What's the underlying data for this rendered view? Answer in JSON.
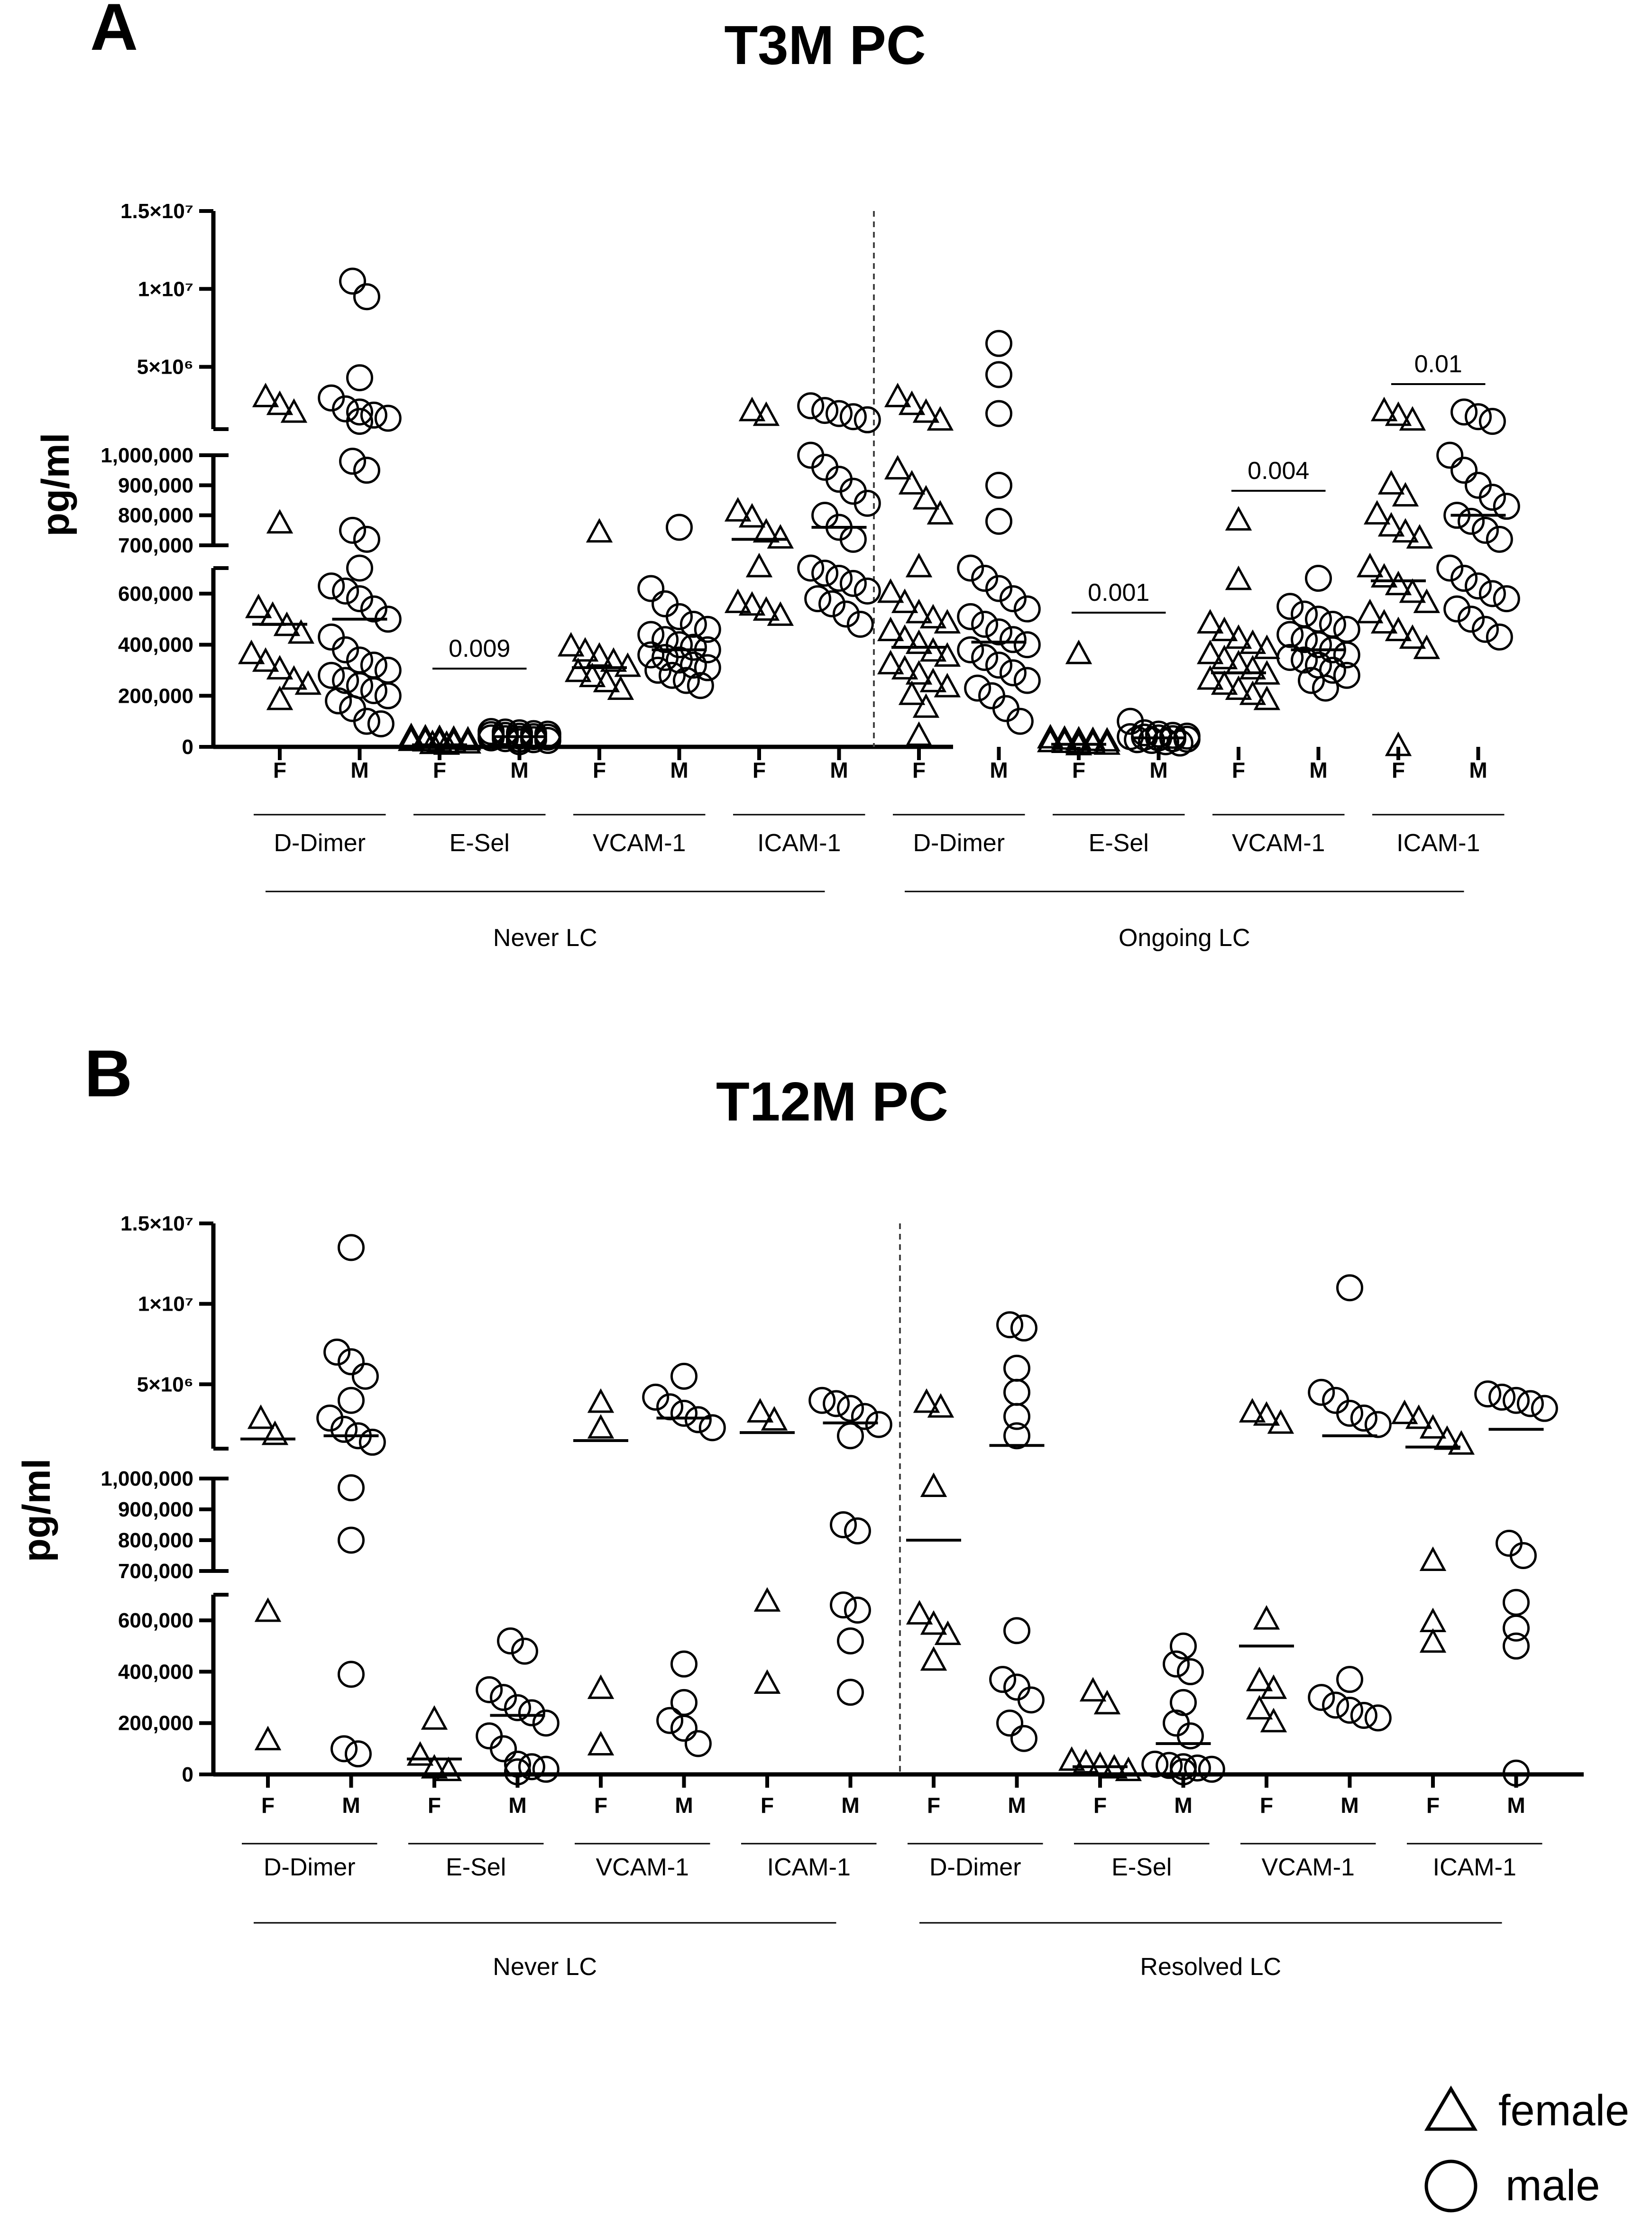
{
  "figure": {
    "legend": [
      {
        "shape": "triangle",
        "label": "female"
      },
      {
        "shape": "circle",
        "label": "male"
      }
    ]
  },
  "chart_data": [
    {
      "type": "scatter",
      "panel_letter": "A",
      "title": "T3M PC",
      "ylabel": "pg/ml",
      "y_axis": {
        "broken": true,
        "segments": [
          {
            "range": [
              0,
              700000
            ],
            "ticks": [
              0,
              200000,
              400000,
              600000
            ],
            "tick_labels": [
              "0",
              "200,000",
              "400,000",
              "600,000"
            ]
          },
          {
            "range": [
              700000,
              1000000
            ],
            "ticks": [
              700000,
              800000,
              900000,
              1000000
            ],
            "tick_labels": [
              "700,000",
              "800,000",
              "900,000",
              "1,000,000"
            ]
          },
          {
            "range": [
              1000000,
              15000000
            ],
            "ticks": [
              5000000,
              10000000,
              15000000
            ],
            "tick_labels": [
              "5×10⁶",
              "1×10⁷",
              "1.5×10⁷"
            ]
          }
        ]
      },
      "x_tick_labels": [
        "F",
        "M"
      ],
      "markers": {
        "F": "triangle",
        "M": "circle"
      },
      "groups": [
        {
          "name": "Never LC",
          "markers": [
            {
              "name": "D-Dimer",
              "F": {
                "values": [
                  180000,
                  240000,
                  260000,
                  300000,
                  330000,
                  360000,
                  440000,
                  470000,
                  510000,
                  540000,
                  770000,
                  2000000,
                  2500000,
                  3000000
                ],
                "median": 480000
              },
              "M": {
                "values": [
                  90000,
                  100000,
                  150000,
                  180000,
                  200000,
                  220000,
                  240000,
                  260000,
                  280000,
                  300000,
                  320000,
                  340000,
                  380000,
                  430000,
                  500000,
                  540000,
                  580000,
                  610000,
                  630000,
                  700000,
                  720000,
                  750000,
                  950000,
                  980000,
                  1500000,
                  1700000,
                  1900000,
                  2100000,
                  2300000,
                  3000000,
                  4300000,
                  9500000,
                  10500000
                ],
                "median": 500000
              }
            },
            {
              "name": "E-Sel",
              "p_value": "0.009",
              "F": {
                "values": [
                  5000,
                  8000,
                  10000,
                  12000,
                  15000,
                  18000,
                  20000,
                  22000,
                  25000,
                  28000,
                  30000,
                  35000
                ],
                "median": 8000
              },
              "M": {
                "values": [
                  20000,
                  25000,
                  28000,
                  30000,
                  32000,
                  35000,
                  38000,
                  40000,
                  42000,
                  45000,
                  48000,
                  50000,
                  52000,
                  55000,
                  58000,
                  60000
                ],
                "median": 40000
              }
            },
            {
              "name": "VCAM-1",
              "F": {
                "values": [
                  220000,
                  250000,
                  270000,
                  290000,
                  310000,
                  330000,
                  350000,
                  370000,
                  390000,
                  740000
                ],
                "median": 310000
              },
              "M": {
                "values": [
                  240000,
                  260000,
                  280000,
                  300000,
                  310000,
                  320000,
                  340000,
                  350000,
                  360000,
                  380000,
                  390000,
                  400000,
                  420000,
                  440000,
                  460000,
                  480000,
                  510000,
                  560000,
                  620000,
                  760000
                ],
                "median": 380000
              }
            },
            {
              "name": "ICAM-1",
              "F": {
                "values": [
                  510000,
                  530000,
                  550000,
                  560000,
                  700000,
                  720000,
                  740000,
                  790000,
                  810000,
                  1800000,
                  2100000
                ],
                "median": 720000
              },
              "M": {
                "values": [
                  480000,
                  520000,
                  560000,
                  580000,
                  610000,
                  640000,
                  660000,
                  680000,
                  700000,
                  720000,
                  760000,
                  800000,
                  840000,
                  880000,
                  920000,
                  960000,
                  1000000,
                  1600000,
                  1800000,
                  2000000,
                  2200000,
                  2500000
                ],
                "median": 760000
              }
            }
          ]
        },
        {
          "name": "Ongoing LC",
          "markers": [
            {
              "name": "D-Dimer",
              "F": {
                "values": [
                  40000,
                  150000,
                  200000,
                  230000,
                  250000,
                  280000,
                  300000,
                  320000,
                  350000,
                  370000,
                  400000,
                  420000,
                  450000,
                  480000,
                  500000,
                  520000,
                  560000,
                  600000,
                  700000,
                  800000,
                  850000,
                  900000,
                  950000,
                  1500000,
                  2000000,
                  2500000,
                  3000000
                ],
                "median": 390000
              },
              "M": {
                "values": [
                  100000,
                  150000,
                  200000,
                  230000,
                  260000,
                  290000,
                  320000,
                  350000,
                  380000,
                  400000,
                  420000,
                  450000,
                  480000,
                  510000,
                  540000,
                  580000,
                  620000,
                  660000,
                  700000,
                  780000,
                  900000,
                  2000000,
                  4500000,
                  6500000
                ],
                "median": 410000
              }
            },
            {
              "name": "E-Sel",
              "p_value": "0.001",
              "F": {
                "values": [
                  3000,
                  5000,
                  8000,
                  10000,
                  12000,
                  15000,
                  18000,
                  20000,
                  22000,
                  25000,
                  30000,
                  360000
                ],
                "median": 10000
              },
              "M": {
                "values": [
                  15000,
                  20000,
                  25000,
                  28000,
                  30000,
                  32000,
                  35000,
                  38000,
                  40000,
                  42000,
                  45000,
                  50000,
                  55000,
                  100000
                ],
                "median": 35000
              }
            },
            {
              "name": "VCAM-1",
              "p_value": "0.004",
              "F": {
                "values": [
                  180000,
                  200000,
                  220000,
                  240000,
                  260000,
                  280000,
                  300000,
                  320000,
                  340000,
                  360000,
                  380000,
                  400000,
                  420000,
                  450000,
                  480000,
                  650000,
                  780000
                ],
                "median": 290000
              },
              "M": {
                "values": [
                  230000,
                  260000,
                  280000,
                  300000,
                  320000,
                  340000,
                  350000,
                  360000,
                  380000,
                  400000,
                  420000,
                  440000,
                  460000,
                  480000,
                  500000,
                  520000,
                  550000,
                  660000
                ],
                "median": 380000
              }
            },
            {
              "name": "ICAM-1",
              "p_value": "0.01",
              "F": {
                "values": [
                  0,
                  380000,
                  420000,
                  450000,
                  480000,
                  520000,
                  560000,
                  600000,
                  630000,
                  660000,
                  700000,
                  720000,
                  740000,
                  760000,
                  800000,
                  860000,
                  900000,
                  1500000,
                  1800000,
                  2100000
                ],
                "median": 650000
              },
              "M": {
                "values": [
                  430000,
                  460000,
                  500000,
                  540000,
                  580000,
                  600000,
                  630000,
                  660000,
                  700000,
                  720000,
                  750000,
                  780000,
                  800000,
                  830000,
                  860000,
                  900000,
                  950000,
                  1000000,
                  1500000,
                  1800000,
                  2100000
                ],
                "median": 800000
              }
            }
          ]
        }
      ]
    },
    {
      "type": "scatter",
      "panel_letter": "B",
      "title": "T12M PC",
      "ylabel": "pg/ml",
      "y_axis": {
        "broken": true,
        "segments": [
          {
            "range": [
              0,
              700000
            ],
            "ticks": [
              0,
              200000,
              400000,
              600000
            ],
            "tick_labels": [
              "0",
              "200,000",
              "400,000",
              "600,000"
            ]
          },
          {
            "range": [
              700000,
              1000000
            ],
            "ticks": [
              700000,
              800000,
              900000,
              1000000
            ],
            "tick_labels": [
              "700,000",
              "800,000",
              "900,000",
              "1,000,000"
            ]
          },
          {
            "range": [
              1000000,
              15000000
            ],
            "ticks": [
              5000000,
              10000000,
              15000000
            ],
            "tick_labels": [
              "5×10⁶",
              "1×10⁷",
              "1.5×10⁷"
            ]
          }
        ]
      },
      "x_tick_labels": [
        "F",
        "M"
      ],
      "markers": {
        "F": "triangle",
        "M": "circle"
      },
      "groups": [
        {
          "name": "Never LC",
          "markers": [
            {
              "name": "D-Dimer",
              "F": {
                "values": [
                  130000,
                  630000,
                  1800000,
                  2800000
                ],
                "median": 1600000
              },
              "M": {
                "values": [
                  80000,
                  100000,
                  390000,
                  800000,
                  970000,
                  1400000,
                  1800000,
                  2200000,
                  2900000,
                  4000000,
                  5500000,
                  6400000,
                  7000000,
                  13500000
                ],
                "median": 1800000
              }
            },
            {
              "name": "E-Sel",
              "F": {
                "values": [
                  10000,
                  20000,
                  70000,
                  210000
                ],
                "median": 60000
              },
              "M": {
                "values": [
                  10000,
                  20000,
                  30000,
                  40000,
                  100000,
                  150000,
                  200000,
                  240000,
                  260000,
                  300000,
                  330000,
                  480000,
                  520000
                ],
                "median": 230000
              }
            },
            {
              "name": "VCAM-1",
              "F": {
                "values": [
                  110000,
                  330000,
                  2200000,
                  3800000
                ],
                "median": 1500000
              },
              "M": {
                "values": [
                  120000,
                  180000,
                  210000,
                  280000,
                  430000,
                  2300000,
                  2800000,
                  3200000,
                  3600000,
                  4200000,
                  5500000
                ],
                "median": 2900000
              }
            },
            {
              "name": "ICAM-1",
              "F": {
                "values": [
                  350000,
                  670000,
                  2700000,
                  3200000
                ],
                "median": 2000000
              },
              "M": {
                "values": [
                  320000,
                  520000,
                  640000,
                  660000,
                  830000,
                  850000,
                  1800000,
                  2500000,
                  3000000,
                  3500000,
                  3800000,
                  4000000
                ],
                "median": 2600000
              }
            }
          ]
        },
        {
          "name": "Resolved LC",
          "markers": [
            {
              "name": "D-Dimer",
              "F": {
                "values": [
                  440000,
                  540000,
                  580000,
                  620000,
                  970000,
                  3500000,
                  3800000
                ],
                "median": 800000
              },
              "M": {
                "values": [
                  140000,
                  200000,
                  290000,
                  340000,
                  370000,
                  560000,
                  1800000,
                  3000000,
                  4500000,
                  6000000,
                  8500000,
                  8700000
                ],
                "median": 1200000
              }
            },
            {
              "name": "E-Sel",
              "F": {
                "values": [
                  10000,
                  20000,
                  30000,
                  40000,
                  50000,
                  270000,
                  320000
                ],
                "median": 30000
              },
              "M": {
                "values": [
                  10000,
                  20000,
                  25000,
                  30000,
                  35000,
                  40000,
                  150000,
                  200000,
                  280000,
                  400000,
                  430000,
                  500000
                ],
                "median": 120000
              }
            },
            {
              "name": "VCAM-1",
              "F": {
                "values": [
                  200000,
                  250000,
                  330000,
                  360000,
                  600000,
                  2500000,
                  3000000,
                  3200000
                ],
                "median": 500000
              },
              "M": {
                "values": [
                  220000,
                  230000,
                  250000,
                  270000,
                  300000,
                  370000,
                  2500000,
                  2900000,
                  3200000,
                  4000000,
                  4500000,
                  11000000
                ],
                "median": 1800000
              }
            },
            {
              "name": "ICAM-1",
              "F": {
                "values": [
                  510000,
                  590000,
                  730000,
                  1200000,
                  1500000,
                  2200000,
                  2800000,
                  3100000
                ],
                "median": 1100000
              },
              "M": {
                "values": [
                  5000,
                  500000,
                  570000,
                  670000,
                  750000,
                  790000,
                  3500000,
                  3800000,
                  4000000,
                  4200000,
                  4400000
                ],
                "median": 2200000
              }
            }
          ]
        }
      ]
    }
  ]
}
